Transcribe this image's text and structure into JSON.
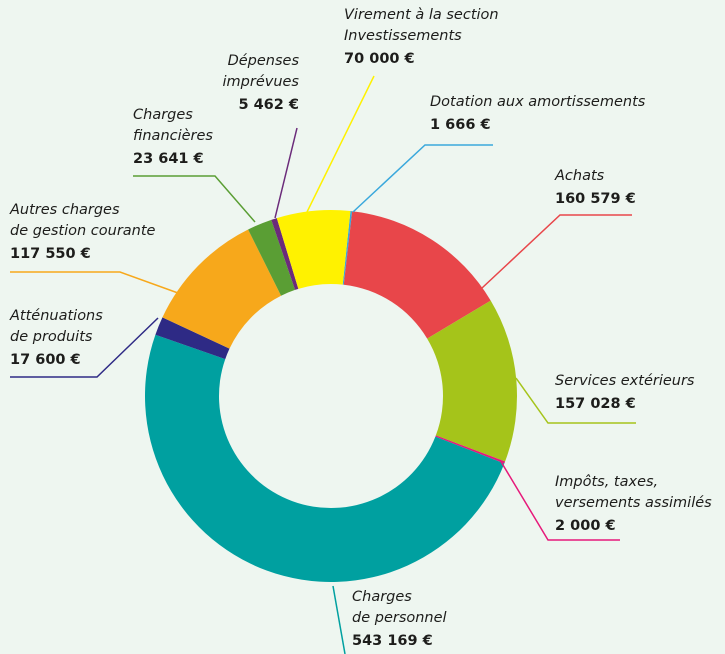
{
  "chart_data": {
    "type": "donut",
    "categories": [
      [
        "Dotation aux amortissements"
      ],
      [
        "Achats"
      ],
      [
        "Services extérieurs"
      ],
      [
        "Impôts, taxes,",
        "versements assimilés"
      ],
      [
        "Charges",
        "de personnel"
      ],
      [
        "Atténuations",
        "de produits"
      ],
      [
        "Autres charges",
        "de gestion courante"
      ],
      [
        "Charges",
        "financières"
      ],
      [
        "Dépenses",
        "imprévues"
      ],
      [
        "Virement à la section",
        "Investissements"
      ]
    ],
    "values": [
      1666,
      160579,
      157028,
      2000,
      543169,
      17600,
      117550,
      23641,
      5462,
      70000
    ],
    "value_labels": [
      "1 666 €",
      "160 579 €",
      "157 028 €",
      "2 000 €",
      "543 169 €",
      "17 600 €",
      "117 550 €",
      "23 641 €",
      "5 462 €",
      "70 000 €"
    ],
    "colors": [
      "#3aa8dc",
      "#e8464a",
      "#a5c41a",
      "#e6197a",
      "#00a0a0",
      "#2e2a85",
      "#f7a81b",
      "#5a9e34",
      "#6b2b7a",
      "#fff200"
    ]
  }
}
